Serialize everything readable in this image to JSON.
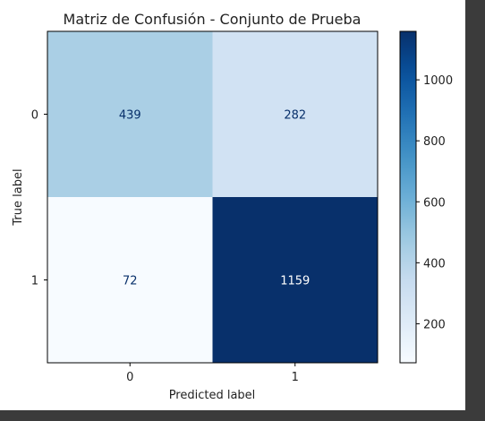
{
  "chart_data": {
    "type": "heatmap",
    "title": "Matriz de Confusión - Conjunto de Prueba",
    "xlabel": "Predicted label",
    "ylabel": "True label",
    "x_categories": [
      "0",
      "1"
    ],
    "y_categories": [
      "0",
      "1"
    ],
    "matrix": [
      [
        439,
        282
      ],
      [
        72,
        1159
      ]
    ],
    "colormap": "Blues",
    "colorbar": {
      "vmin": 72,
      "vmax": 1159,
      "ticks": [
        200,
        400,
        600,
        800,
        1000
      ]
    },
    "grid": false,
    "colors": {
      "low": "#f7fbff",
      "high": "#08306b",
      "text_light": "#ffffff",
      "text_dark": "#08306b"
    }
  }
}
